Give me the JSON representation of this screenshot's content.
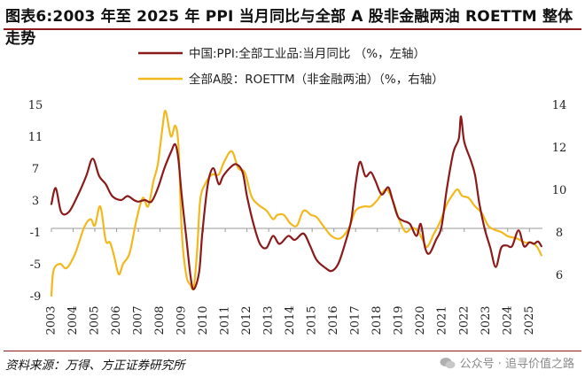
{
  "header": {
    "title": "图表6:2003 年至 2025 年 PPI 当月同比与全部 A 股非金融两油 ROETTM 整体走势"
  },
  "footer": {
    "source": "资料来源：万得、方正证券研究所",
    "watermark": "公众号 · 追寻价值之路"
  },
  "colors": {
    "ppi": "#8b1a1a",
    "roe": "#f2b81c",
    "axis": "#999999",
    "rule": "#8b1a1a"
  },
  "chart_data": {
    "type": "line",
    "title": "",
    "xlabel": "",
    "x_ticks": [
      "2003",
      "2004",
      "2005",
      "2006",
      "2007",
      "2008",
      "2009",
      "2010",
      "2011",
      "2012",
      "2013",
      "2014",
      "2015",
      "2016",
      "2017",
      "2018",
      "2019",
      "2020",
      "2021",
      "2022",
      "2023",
      "2024",
      "2025"
    ],
    "xlim": [
      2003,
      2025.6
    ],
    "y_left": {
      "ticks": [
        "15",
        "11",
        "7",
        "3",
        "-1",
        "-5",
        "-9"
      ],
      "lim": [
        -9,
        15
      ]
    },
    "y_right": {
      "ticks": [
        "14",
        "12",
        "10",
        "8",
        "6"
      ],
      "lim": [
        5,
        14
      ]
    },
    "legend": {
      "placement": "top-left"
    },
    "series": [
      {
        "name": "中国:PPI:全部工业品:当月同比 （%，左轴）",
        "axis": "left",
        "points": [
          [
            2003.0,
            2.5
          ],
          [
            2003.2,
            4.5
          ],
          [
            2003.45,
            1.5
          ],
          [
            2003.8,
            1.5
          ],
          [
            2004.2,
            3.5
          ],
          [
            2004.6,
            6.0
          ],
          [
            2004.9,
            8.2
          ],
          [
            2005.2,
            6.0
          ],
          [
            2005.5,
            5.0
          ],
          [
            2005.8,
            3.5
          ],
          [
            2006.2,
            3.0
          ],
          [
            2006.5,
            3.5
          ],
          [
            2006.8,
            3.0
          ],
          [
            2007.0,
            2.8
          ],
          [
            2007.3,
            3.0
          ],
          [
            2007.6,
            2.8
          ],
          [
            2007.9,
            4.5
          ],
          [
            2008.2,
            7.0
          ],
          [
            2008.5,
            9.0
          ],
          [
            2008.7,
            10.0
          ],
          [
            2008.85,
            8.0
          ],
          [
            2009.0,
            3.5
          ],
          [
            2009.2,
            -1.5
          ],
          [
            2009.4,
            -6.5
          ],
          [
            2009.55,
            -8.2
          ],
          [
            2009.8,
            -6.0
          ],
          [
            2009.95,
            -1.0
          ],
          [
            2010.2,
            5.0
          ],
          [
            2010.45,
            7.0
          ],
          [
            2010.7,
            5.0
          ],
          [
            2010.9,
            6.0
          ],
          [
            2011.2,
            7.0
          ],
          [
            2011.5,
            7.5
          ],
          [
            2011.8,
            6.5
          ],
          [
            2012.0,
            3.5
          ],
          [
            2012.3,
            0.0
          ],
          [
            2012.6,
            -2.5
          ],
          [
            2012.9,
            -3.0
          ],
          [
            2013.2,
            -1.5
          ],
          [
            2013.5,
            -2.5
          ],
          [
            2013.9,
            -1.5
          ],
          [
            2014.2,
            -2.0
          ],
          [
            2014.6,
            -1.2
          ],
          [
            2014.9,
            -2.7
          ],
          [
            2015.2,
            -4.5
          ],
          [
            2015.6,
            -5.5
          ],
          [
            2015.9,
            -5.9
          ],
          [
            2016.2,
            -5.0
          ],
          [
            2016.5,
            -2.6
          ],
          [
            2016.8,
            0.5
          ],
          [
            2017.0,
            5.0
          ],
          [
            2017.2,
            7.8
          ],
          [
            2017.45,
            6.0
          ],
          [
            2017.7,
            6.5
          ],
          [
            2017.9,
            5.5
          ],
          [
            2018.2,
            3.7
          ],
          [
            2018.5,
            4.6
          ],
          [
            2018.7,
            3.0
          ],
          [
            2018.95,
            0.9
          ],
          [
            2019.2,
            0.4
          ],
          [
            2019.5,
            0.0
          ],
          [
            2019.8,
            -1.5
          ],
          [
            2020.0,
            0.0
          ],
          [
            2020.2,
            -3.0
          ],
          [
            2020.4,
            -3.7
          ],
          [
            2020.7,
            -2.0
          ],
          [
            2020.95,
            -0.4
          ],
          [
            2021.2,
            4.4
          ],
          [
            2021.5,
            9.0
          ],
          [
            2021.75,
            10.7
          ],
          [
            2021.85,
            13.5
          ],
          [
            2022.0,
            10.3
          ],
          [
            2022.3,
            8.0
          ],
          [
            2022.5,
            6.1
          ],
          [
            2022.7,
            2.5
          ],
          [
            2022.95,
            -0.7
          ],
          [
            2023.2,
            -3.0
          ],
          [
            2023.45,
            -5.4
          ],
          [
            2023.7,
            -3.0
          ],
          [
            2023.95,
            -2.7
          ],
          [
            2024.2,
            -2.8
          ],
          [
            2024.5,
            -0.8
          ],
          [
            2024.75,
            -2.8
          ],
          [
            2025.0,
            -2.3
          ],
          [
            2025.2,
            -2.5
          ],
          [
            2025.4,
            -2.2
          ],
          [
            2025.55,
            -2.8
          ]
        ]
      },
      {
        "name": "全部A股：ROETTM（非金融两油）（%，右轴）",
        "axis": "right",
        "points": [
          [
            2003.0,
            5.0
          ],
          [
            2003.1,
            6.2
          ],
          [
            2003.4,
            6.5
          ],
          [
            2003.7,
            6.3
          ],
          [
            2004.1,
            7.0
          ],
          [
            2004.5,
            8.2
          ],
          [
            2004.8,
            8.6
          ],
          [
            2005.0,
            8.3
          ],
          [
            2005.25,
            9.2
          ],
          [
            2005.5,
            7.6
          ],
          [
            2005.7,
            7.5
          ],
          [
            2005.9,
            6.8
          ],
          [
            2006.1,
            6.0
          ],
          [
            2006.3,
            6.5
          ],
          [
            2006.6,
            7.0
          ],
          [
            2006.9,
            8.5
          ],
          [
            2007.2,
            9.6
          ],
          [
            2007.45,
            9.2
          ],
          [
            2007.7,
            10.4
          ],
          [
            2007.9,
            11.2
          ],
          [
            2008.1,
            12.8
          ],
          [
            2008.25,
            13.7
          ],
          [
            2008.5,
            12.5
          ],
          [
            2008.7,
            13.0
          ],
          [
            2008.85,
            12.0
          ],
          [
            2009.0,
            8.0
          ],
          [
            2009.2,
            6.0
          ],
          [
            2009.4,
            5.5
          ],
          [
            2009.55,
            5.4
          ],
          [
            2009.7,
            7.0
          ],
          [
            2009.85,
            9.5
          ],
          [
            2010.1,
            10.3
          ],
          [
            2010.4,
            10.7
          ],
          [
            2010.7,
            10.7
          ],
          [
            2010.95,
            11.3
          ],
          [
            2011.3,
            11.8
          ],
          [
            2011.6,
            11.0
          ],
          [
            2011.9,
            10.8
          ],
          [
            2012.2,
            9.7
          ],
          [
            2012.5,
            9.3
          ],
          [
            2012.9,
            9.0
          ],
          [
            2013.2,
            8.6
          ],
          [
            2013.4,
            8.8
          ],
          [
            2013.7,
            8.8
          ],
          [
            2014.0,
            8.4
          ],
          [
            2014.3,
            8.3
          ],
          [
            2014.6,
            9.0
          ],
          [
            2014.95,
            8.8
          ],
          [
            2015.2,
            8.7
          ],
          [
            2015.5,
            8.3
          ],
          [
            2015.9,
            7.8
          ],
          [
            2016.3,
            7.7
          ],
          [
            2016.7,
            8.2
          ],
          [
            2017.0,
            9.0
          ],
          [
            2017.4,
            9.2
          ],
          [
            2017.7,
            9.2
          ],
          [
            2018.0,
            9.5
          ],
          [
            2018.4,
            10.0
          ],
          [
            2018.7,
            9.5
          ],
          [
            2019.0,
            8.6
          ],
          [
            2019.3,
            8.0
          ],
          [
            2019.6,
            8.2
          ],
          [
            2019.9,
            8.0
          ],
          [
            2020.1,
            7.6
          ],
          [
            2020.3,
            7.3
          ],
          [
            2020.6,
            7.9
          ],
          [
            2020.9,
            8.5
          ],
          [
            2021.2,
            9.3
          ],
          [
            2021.5,
            9.8
          ],
          [
            2021.7,
            10.0
          ],
          [
            2021.9,
            9.7
          ],
          [
            2022.2,
            9.6
          ],
          [
            2022.5,
            9.2
          ],
          [
            2022.8,
            8.9
          ],
          [
            2023.1,
            8.3
          ],
          [
            2023.4,
            8.1
          ],
          [
            2023.7,
            8.0
          ],
          [
            2024.0,
            7.8
          ],
          [
            2024.4,
            7.7
          ],
          [
            2024.8,
            7.5
          ],
          [
            2025.1,
            7.5
          ],
          [
            2025.35,
            7.3
          ],
          [
            2025.55,
            6.9
          ]
        ]
      }
    ]
  }
}
